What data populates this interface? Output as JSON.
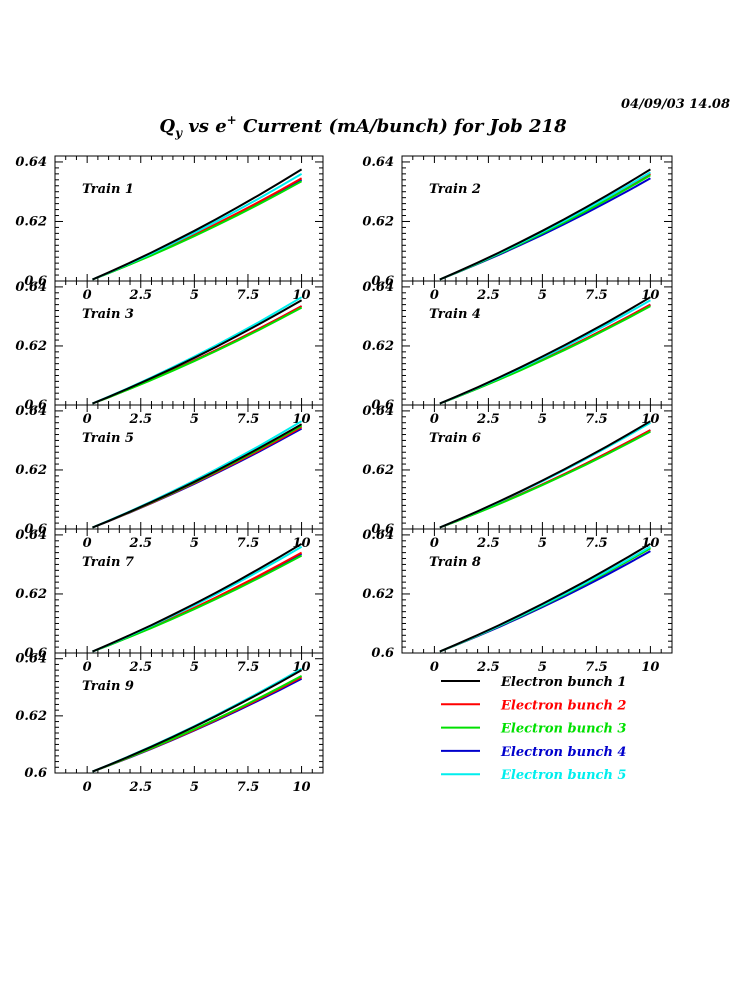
{
  "header": {
    "timestamp": "04/09/03   14.08",
    "title_q": "Q",
    "title_q_sub": "y",
    "title_vs": " vs e",
    "title_sup": "+",
    "title_rest": " Current (mA/bunch) for Job 218"
  },
  "colors": {
    "bunch1": "#000000",
    "bunch2": "#ff0000",
    "bunch3": "#00e000",
    "bunch4": "#0000cc",
    "bunch5": "#00eeee"
  },
  "chart_data": {
    "type": "line",
    "title": "Qy vs e+ Current (mA/bunch) for Job 218",
    "grid": false,
    "legend_position": "bottom-right",
    "xlim": [
      -1.5,
      11
    ],
    "ylim": [
      0.6,
      0.642
    ],
    "x_ticks": [
      "0",
      "2.5",
      "5",
      "7.5",
      "10"
    ],
    "y_ticks": [
      "0.6",
      "0.62",
      "0.64"
    ],
    "x": [
      0.25,
      1,
      2,
      3,
      4,
      5,
      6,
      7,
      8,
      9,
      10
    ],
    "series_names": [
      "Electron bunch 1",
      "Electron bunch 2",
      "Electron bunch 3",
      "Electron bunch 4",
      "Electron bunch 5"
    ],
    "panels": [
      {
        "label": "Train 1",
        "end_values": [
          0.6375,
          0.6345,
          0.6335,
          0.634,
          0.636
        ]
      },
      {
        "label": "Train 2",
        "end_values": [
          0.6375,
          0.636,
          0.6355,
          0.6345,
          0.6365
        ]
      },
      {
        "label": "Train 3",
        "end_values": [
          0.6355,
          0.6335,
          0.633,
          0.6335,
          0.6365
        ]
      },
      {
        "label": "Train 4",
        "end_values": [
          0.6365,
          0.634,
          0.6335,
          0.634,
          0.6355
        ]
      },
      {
        "label": "Train 5",
        "end_values": [
          0.6355,
          0.6345,
          0.635,
          0.634,
          0.6365
        ]
      },
      {
        "label": "Train 6",
        "end_values": [
          0.6365,
          0.6335,
          0.633,
          0.6335,
          0.636
        ]
      },
      {
        "label": "Train 7",
        "end_values": [
          0.637,
          0.634,
          0.633,
          0.6335,
          0.636
        ]
      },
      {
        "label": "Train 8",
        "end_values": [
          0.637,
          0.6355,
          0.6355,
          0.6345,
          0.636
        ]
      },
      {
        "label": "Train 9",
        "end_values": [
          0.636,
          0.6335,
          0.634,
          0.633,
          0.6365
        ]
      }
    ],
    "start_value": 0.6005
  }
}
